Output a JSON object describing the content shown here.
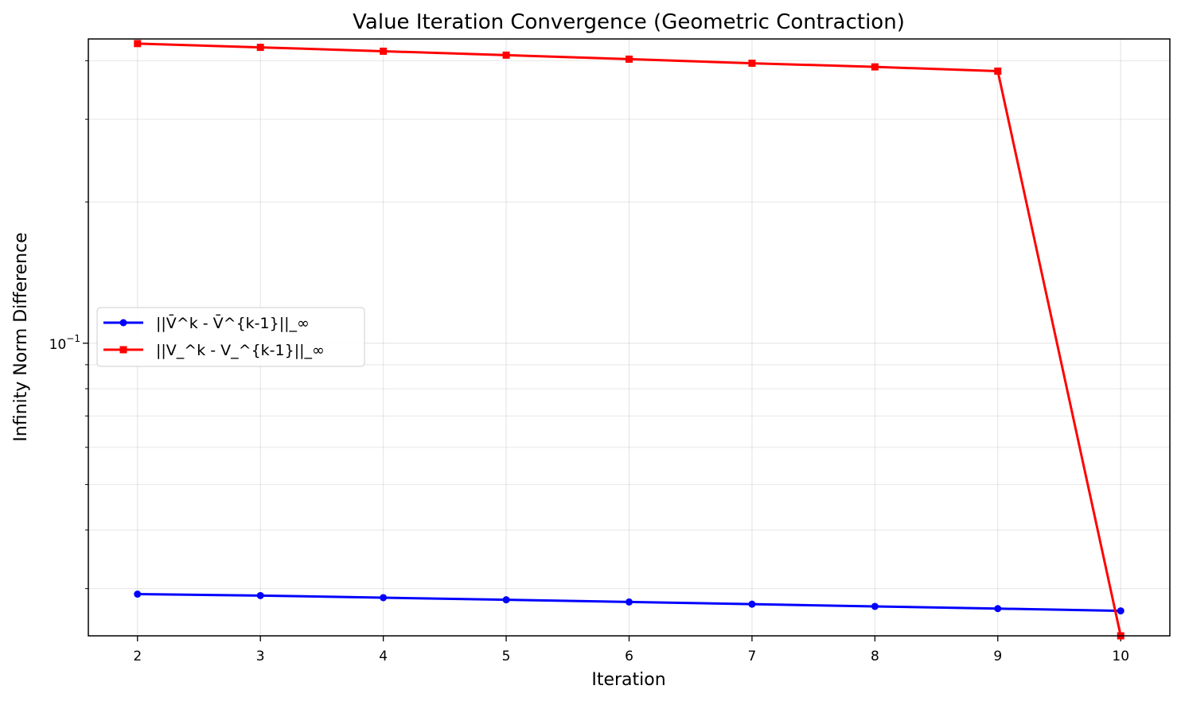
{
  "chart_data": {
    "type": "line",
    "title": "Value Iteration Convergence (Geometric Contraction)",
    "xlabel": "Iteration",
    "ylabel": "Infinity Norm Difference",
    "yscale": "log",
    "x": [
      2,
      3,
      4,
      5,
      6,
      7,
      8,
      9,
      10
    ],
    "xlim": [
      1.6,
      10.4
    ],
    "ylim": [
      0.0238,
      0.445
    ],
    "y_tick_label": "10^{-1}",
    "y_tick_base": "10",
    "y_tick_exp": "−1",
    "grid": true,
    "legend_position": "center-left",
    "series": [
      {
        "name": "||V̄^k - V̄^{k-1}||_∞",
        "color": "#0000ff",
        "marker": "circle",
        "values": [
          0.0292,
          0.029,
          0.0287,
          0.0284,
          0.0281,
          0.0278,
          0.0275,
          0.0272,
          0.0269
        ]
      },
      {
        "name": "||V_^k - V_^{k-1}||_∞",
        "color": "#ff0000",
        "marker": "square",
        "values": [
          0.435,
          0.427,
          0.419,
          0.411,
          0.403,
          0.395,
          0.388,
          0.38,
          0.0238
        ]
      }
    ]
  }
}
